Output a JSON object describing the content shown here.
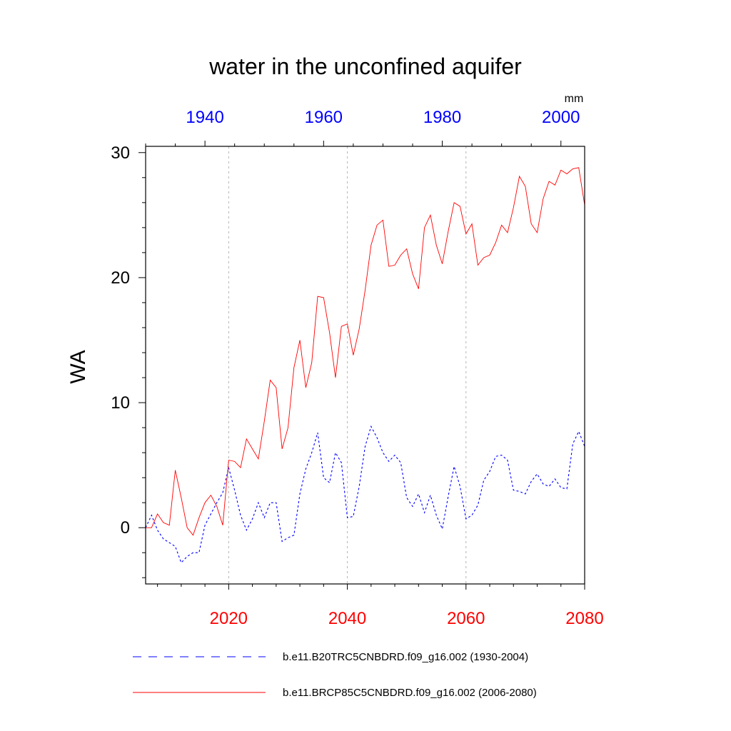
{
  "chart_data": {
    "type": "line",
    "title": "water in the unconfined aquifer",
    "units": "mm",
    "ylabel": "WA",
    "ylim": [
      -4.5,
      30.5
    ],
    "yticks": [
      0,
      10,
      20,
      30
    ],
    "y_minor_step": 2,
    "bottom_axis": {
      "xlim": [
        2006,
        2080
      ],
      "ticks": [
        2020,
        2040,
        2060,
        2080
      ],
      "color": "#ff0000"
    },
    "top_axis": {
      "xlim": [
        1930,
        2004
      ],
      "ticks": [
        1940,
        1960,
        1980,
        2000
      ],
      "color": "#0000ff"
    },
    "gridlines_x": [
      2020,
      2040,
      2060
    ],
    "series": [
      {
        "name": "b.e11.B20TRC5CNBDRD.f09_g16.002 (1930-2004)",
        "color": "#0000ff",
        "style": "dashed",
        "axis": "top",
        "x_start": 1930,
        "values": [
          0.0,
          1.0,
          -0.2,
          -0.9,
          -1.2,
          -1.5,
          -2.8,
          -2.3,
          -2.0,
          -2.0,
          0.2,
          1.1,
          2.0,
          2.8,
          4.8,
          3.0,
          1.0,
          -0.2,
          0.7,
          2.0,
          0.8,
          2.0,
          2.0,
          -1.1,
          -0.8,
          -0.6,
          2.7,
          4.7,
          6.0,
          7.6,
          4.0,
          3.6,
          6.0,
          5.2,
          0.8,
          0.9,
          3.3,
          6.5,
          8.1,
          7.2,
          6.0,
          5.3,
          5.8,
          5.2,
          2.4,
          1.7,
          2.7,
          1.2,
          2.6,
          1.0,
          -0.1,
          2.5,
          4.9,
          3.3,
          0.7,
          1.0,
          1.8,
          3.8,
          4.5,
          5.7,
          5.8,
          5.4,
          3.0,
          2.9,
          2.7,
          3.7,
          4.3,
          3.5,
          3.3,
          3.9,
          3.2,
          3.1,
          6.7,
          7.7,
          6.5
        ]
      },
      {
        "name": "b.e11.BRCP85C5CNBDRD.f09_g16.002 (2006-2080)",
        "color": "#ff0000",
        "style": "solid",
        "axis": "bottom",
        "x_start": 2006,
        "values": [
          0.0,
          0.0,
          1.1,
          0.4,
          0.2,
          4.6,
          2.4,
          0.0,
          -0.6,
          0.8,
          2.0,
          2.6,
          1.7,
          0.2,
          5.4,
          5.3,
          4.8,
          7.1,
          6.3,
          5.5,
          8.5,
          11.8,
          11.2,
          6.3,
          8.0,
          12.8,
          15.0,
          11.2,
          13.2,
          18.5,
          18.4,
          15.6,
          12.0,
          16.1,
          16.3,
          13.8,
          15.9,
          19.0,
          22.6,
          24.2,
          24.6,
          20.9,
          21.0,
          21.8,
          22.3,
          20.3,
          19.1,
          24.0,
          25.0,
          22.6,
          21.1,
          23.7,
          26.0,
          25.7,
          23.5,
          24.3,
          21.0,
          21.6,
          21.8,
          22.8,
          24.2,
          23.6,
          25.6,
          28.1,
          27.3,
          24.3,
          23.6,
          26.3,
          27.7,
          27.4,
          28.6,
          28.3,
          28.7,
          28.8,
          25.8
        ]
      }
    ]
  }
}
